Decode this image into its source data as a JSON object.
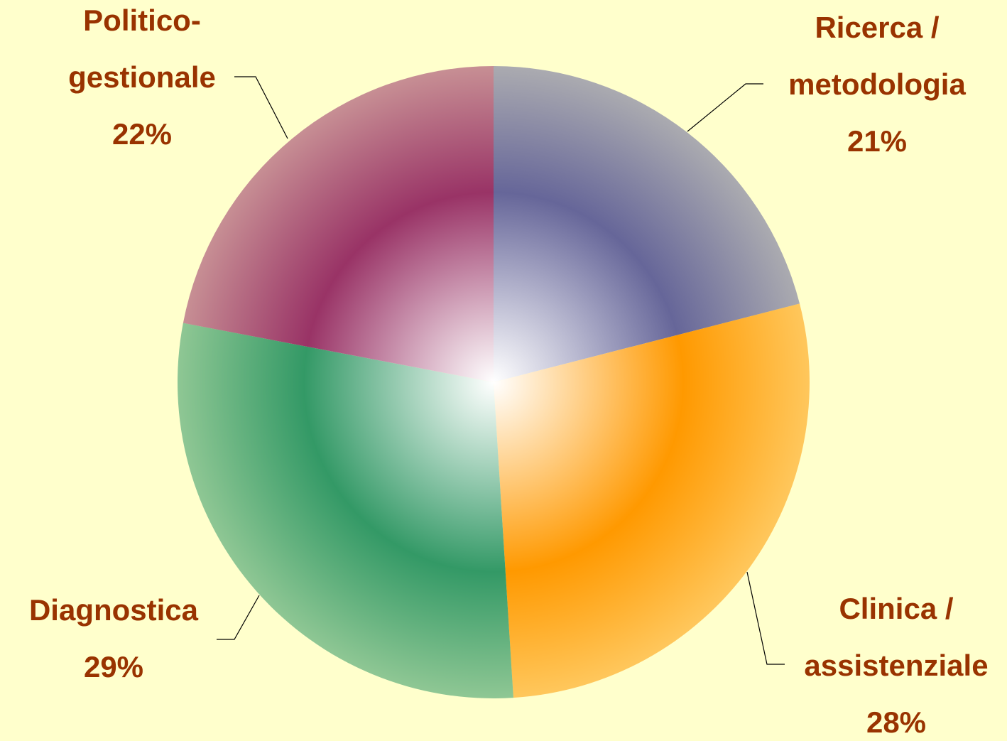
{
  "chart_data": {
    "type": "pie",
    "categories": [
      [
        "Ricerca /",
        "metodologia"
      ],
      [
        "Clinica /",
        "assistenziale"
      ],
      [
        "Diagnostica"
      ],
      [
        "Politico-",
        "gestionale"
      ]
    ],
    "values": [
      21,
      28,
      29,
      22
    ],
    "value_labels": [
      "21%",
      "28%",
      "29%",
      "22%"
    ],
    "colors": [
      "#666699",
      "#ff9900",
      "#339966",
      "#993366"
    ]
  }
}
